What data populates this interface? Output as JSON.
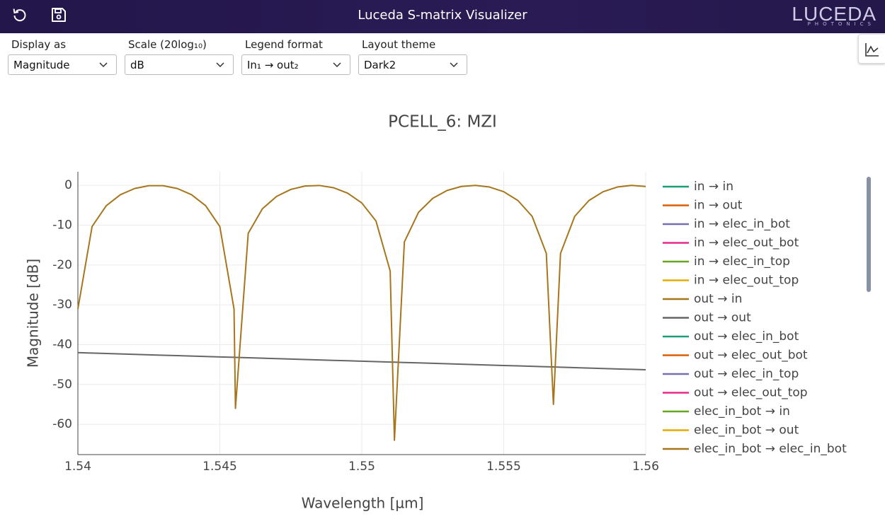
{
  "header": {
    "title": "Luceda S-matrix Visualizer",
    "logo": "LUCEDA",
    "logo_sub": "PHOTONICS"
  },
  "controls": [
    {
      "label": "Display as",
      "value": "Magnitude"
    },
    {
      "label": "Scale (20log₁₀)",
      "value": "dB"
    },
    {
      "label": "Legend format",
      "value": "In₁ → out₂"
    },
    {
      "label": "Layout theme",
      "value": "Dark2"
    }
  ],
  "chart_data": {
    "type": "line",
    "title": "PCELL_6: MZI",
    "x_label": "Wavelength [µm]",
    "y_label": "Magnitude [dB]",
    "xlim": [
      1.54,
      1.56
    ],
    "xticks": [
      1.54,
      1.545,
      1.55,
      1.555,
      1.56
    ],
    "ylim": [
      -67.6,
      3.4
    ],
    "yticks": [
      -60,
      -50,
      -40,
      -30,
      -20,
      -10,
      0
    ],
    "grid": true,
    "legend": "right",
    "x": [
      1.54,
      1.5405,
      1.541,
      1.5415,
      1.542,
      1.5425,
      1.543,
      1.5435,
      1.544,
      1.5445,
      1.545,
      1.5455,
      1.54555,
      1.546,
      1.5465,
      1.547,
      1.5475,
      1.548,
      1.5485,
      1.549,
      1.5495,
      1.55,
      1.5505,
      1.551,
      1.55115,
      1.5515,
      1.552,
      1.5525,
      1.553,
      1.5535,
      1.554,
      1.5545,
      1.555,
      1.5555,
      1.556,
      1.5565,
      1.55675,
      1.557,
      1.5575,
      1.558,
      1.5585,
      1.559,
      1.5595,
      1.56
    ],
    "series": [
      {
        "name": "in → in",
        "color": "#1b9e77"
      },
      {
        "name": "in → out",
        "color": "#d95f02"
      },
      {
        "name": "in → elec_in_bot",
        "color": "#7570b3"
      },
      {
        "name": "in → elec_out_bot",
        "color": "#e7298a"
      },
      {
        "name": "in → elec_in_top",
        "color": "#66a61e"
      },
      {
        "name": "in → elec_out_top",
        "color": "#e6ab02"
      },
      {
        "name": "out → in",
        "color": "#a6761d",
        "values": [
          -31.04,
          -10.35,
          -5.11,
          -2.34,
          -0.79,
          -0.09,
          -0.09,
          -0.79,
          -2.34,
          -5.11,
          -10.35,
          -31.04,
          -56,
          -12.05,
          -5.88,
          -2.77,
          -1.03,
          -0.17,
          -0.03,
          -0.59,
          -1.95,
          -4.42,
          -8.96,
          -21.51,
          -64,
          -14.2,
          -6.76,
          -3.26,
          -1.3,
          -0.28,
          -0.01,
          -0.42,
          -1.6,
          -3.81,
          -7.78,
          -17.09,
          -55,
          -17.09,
          -7.78,
          -3.81,
          -1.6,
          -0.42,
          -0.01,
          -0.28
        ]
      },
      {
        "name": "out → out",
        "color": "#666666",
        "values": [
          -42,
          -42.11,
          -42.22,
          -42.32,
          -42.43,
          -42.54,
          -42.65,
          -42.75,
          -42.86,
          -42.97,
          -43.08,
          -43.18,
          -43.19,
          -43.29,
          -43.4,
          -43.51,
          -43.61,
          -43.72,
          -43.83,
          -43.94,
          -44.04,
          -44.15,
          -44.26,
          -44.37,
          -44.4,
          -44.47,
          -44.58,
          -44.69,
          -44.8,
          -44.9,
          -45.01,
          -45.12,
          -45.23,
          -45.33,
          -45.44,
          -45.55,
          -45.6,
          -45.66,
          -45.76,
          -45.87,
          -45.98,
          -46.09,
          -46.19,
          -46.3
        ]
      },
      {
        "name": "out → elec_in_bot",
        "color": "#1b9e77"
      },
      {
        "name": "out → elec_out_bot",
        "color": "#d95f02"
      },
      {
        "name": "out → elec_in_top",
        "color": "#7570b3"
      },
      {
        "name": "out → elec_out_top",
        "color": "#e7298a"
      },
      {
        "name": "elec_in_bot → in",
        "color": "#66a61e"
      },
      {
        "name": "elec_in_bot → out",
        "color": "#e6ab02"
      },
      {
        "name": "elec_in_bot → elec_in_bot",
        "color": "#a6761d"
      }
    ]
  }
}
